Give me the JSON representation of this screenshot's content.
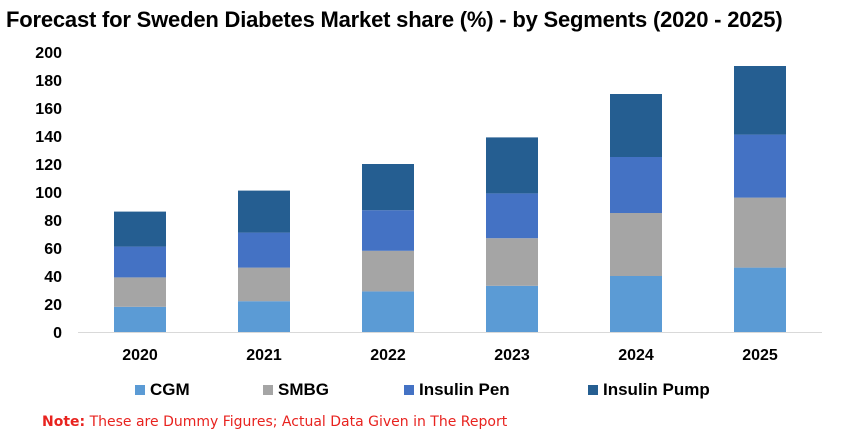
{
  "chart_data": {
    "type": "bar",
    "stacked": true,
    "title": "Forecast for Sweden Diabetes Market share (%) - by Segments (2020 - 2025)",
    "xlabel": "",
    "ylabel": "",
    "categories": [
      "2020",
      "2021",
      "2022",
      "2023",
      "2024",
      "2025"
    ],
    "series": [
      {
        "name": "CGM",
        "color": "#5b9bd5",
        "values": [
          18,
          22,
          29,
          33,
          40,
          46
        ]
      },
      {
        "name": "SMBG",
        "color": "#a5a5a5",
        "values": [
          21,
          24,
          29,
          34,
          45,
          50
        ]
      },
      {
        "name": "Insulin Pen",
        "color": "#4472c4",
        "values": [
          22,
          25,
          29,
          32,
          40,
          45
        ]
      },
      {
        "name": "Insulin Pump",
        "color": "#255e91",
        "values": [
          25,
          30,
          33,
          40,
          45,
          49
        ]
      }
    ],
    "ylim": [
      0,
      200
    ],
    "yticks": [
      0,
      20,
      40,
      60,
      80,
      100,
      120,
      140,
      160,
      180,
      200
    ],
    "grid": false,
    "legend_position": "bottom"
  },
  "note": {
    "label": "Note:",
    "text": "These are Dummy Figures; Actual Data Given in The Report"
  }
}
